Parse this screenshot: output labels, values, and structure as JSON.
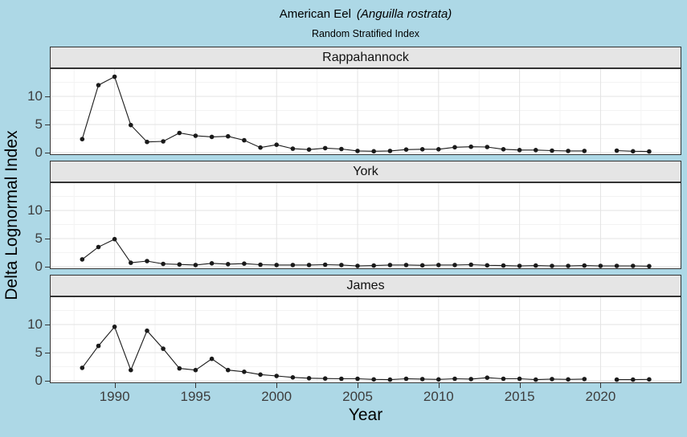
{
  "chart_data": {
    "type": "line",
    "title": "American Eel (Anguilla rostrata)",
    "title_parts": {
      "main": "American Eel",
      "species": "(Anguilla rostrata)"
    },
    "subtitle": "Random Stratified Index",
    "xlabel": "Year",
    "ylabel": "Delta Lognormal Index",
    "x_ticks": [
      1990,
      1995,
      2000,
      2005,
      2010,
      2015,
      2020
    ],
    "y_ticks": [
      0,
      5,
      10
    ],
    "x_range": [
      1986,
      2025
    ],
    "y_range": [
      -0.5,
      14.9
    ],
    "grid": "major and minor, light gray on white panel",
    "legend": "none",
    "facet_layout": "3 rows, shared x axis",
    "colors": {
      "page_background": "#ADD8E6",
      "strip_fill": "#E5E5E5",
      "panel_fill": "#FFFFFF",
      "panel_border": "#333333",
      "series": "#1a1a1a"
    },
    "facets": [
      {
        "name": "Rappahannock",
        "years": [
          1988,
          1989,
          1990,
          1991,
          1992,
          1993,
          1994,
          1995,
          1996,
          1997,
          1998,
          1999,
          2000,
          2001,
          2002,
          2003,
          2004,
          2005,
          2006,
          2007,
          2008,
          2009,
          2010,
          2011,
          2012,
          2013,
          2014,
          2015,
          2016,
          2017,
          2018,
          2019,
          2021,
          2022,
          2023
        ],
        "values": [
          2.4,
          12.0,
          13.5,
          4.9,
          1.9,
          2.0,
          3.5,
          3.0,
          2.8,
          2.9,
          2.2,
          0.9,
          1.4,
          0.7,
          0.55,
          0.8,
          0.65,
          0.3,
          0.25,
          0.3,
          0.55,
          0.6,
          0.6,
          0.95,
          1.05,
          1.0,
          0.6,
          0.45,
          0.45,
          0.35,
          0.3,
          0.3,
          0.35,
          0.25,
          0.2
        ]
      },
      {
        "name": "York",
        "years": [
          1988,
          1989,
          1990,
          1991,
          1992,
          1993,
          1994,
          1995,
          1996,
          1997,
          1998,
          1999,
          2000,
          2001,
          2002,
          2003,
          2004,
          2005,
          2006,
          2007,
          2008,
          2009,
          2010,
          2011,
          2012,
          2013,
          2014,
          2015,
          2016,
          2017,
          2018,
          2019,
          2020,
          2021,
          2022,
          2023
        ],
        "values": [
          1.3,
          3.5,
          4.9,
          0.7,
          1.0,
          0.5,
          0.4,
          0.3,
          0.6,
          0.45,
          0.55,
          0.35,
          0.3,
          0.3,
          0.3,
          0.35,
          0.3,
          0.15,
          0.2,
          0.3,
          0.3,
          0.25,
          0.3,
          0.3,
          0.35,
          0.25,
          0.2,
          0.15,
          0.2,
          0.15,
          0.15,
          0.2,
          0.15,
          0.15,
          0.15,
          0.1
        ]
      },
      {
        "name": "James",
        "years": [
          1988,
          1989,
          1990,
          1991,
          1992,
          1993,
          1994,
          1995,
          1996,
          1997,
          1998,
          1999,
          2000,
          2001,
          2002,
          2003,
          2004,
          2005,
          2006,
          2007,
          2008,
          2009,
          2010,
          2011,
          2012,
          2013,
          2014,
          2015,
          2016,
          2017,
          2018,
          2019,
          2021,
          2022,
          2023
        ],
        "values": [
          2.3,
          6.2,
          9.6,
          1.9,
          8.9,
          5.7,
          2.2,
          1.9,
          3.9,
          1.9,
          1.6,
          1.1,
          0.85,
          0.6,
          0.45,
          0.4,
          0.35,
          0.35,
          0.25,
          0.2,
          0.35,
          0.3,
          0.25,
          0.35,
          0.3,
          0.55,
          0.35,
          0.35,
          0.2,
          0.3,
          0.25,
          0.3,
          0.2,
          0.2,
          0.25
        ]
      }
    ]
  }
}
